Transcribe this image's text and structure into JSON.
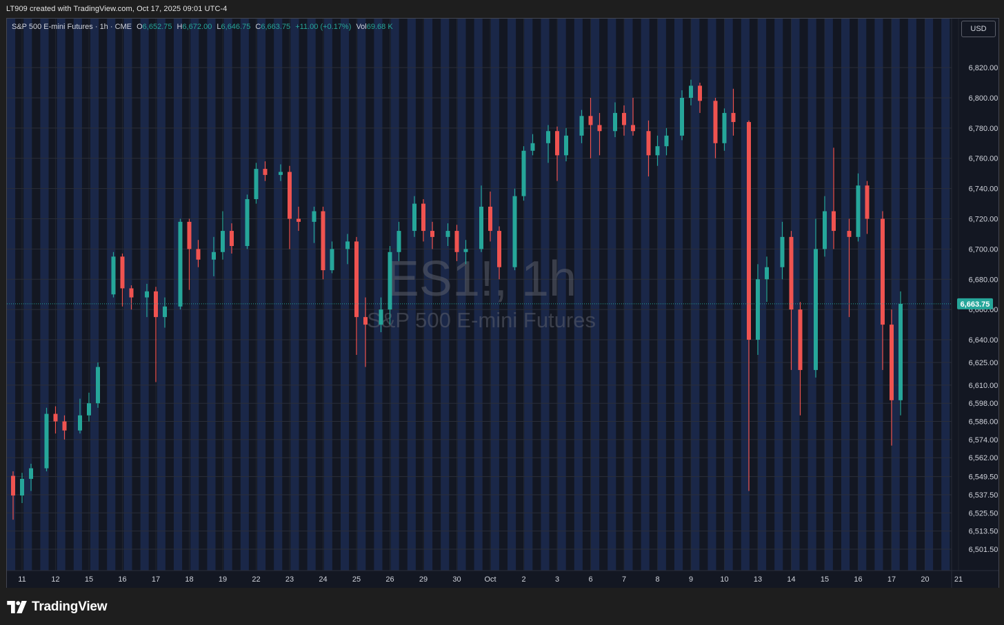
{
  "caption": "LT909 created with TradingView.com, Oct 17, 2025 09:01 UTC-4",
  "legend": {
    "symbol": "S&P 500 E-mini Futures · 1h · CME",
    "open_label": "O",
    "open": "6,652.75",
    "high_label": "H",
    "high": "6,672.00",
    "low_label": "L",
    "low": "6,646.75",
    "close_label": "C",
    "close": "6,663.75",
    "change": "+11.00 (+0.17%)",
    "vol_label": "Vol",
    "vol": "69.68 K"
  },
  "currency": "USD",
  "watermark": {
    "ticker": "ES1!, 1h",
    "name": "S&P 500 E-mini Futures"
  },
  "brand": "TradingView",
  "colors": {
    "up": "#26a69a",
    "down": "#ef5350",
    "price_tag": "#26a69a",
    "session_band": "#1a2748",
    "background": "#131722"
  },
  "chart_data": {
    "type": "candlestick",
    "interval": "1h",
    "ylim": [
      6491,
      6841
    ],
    "current_price": 6663.75,
    "current_price_label": "6,663.75",
    "y_ticks": [
      6820,
      6800,
      6780,
      6760,
      6740,
      6720,
      6700,
      6680,
      6660,
      6640,
      6625,
      6610,
      6598,
      6586,
      6574,
      6562,
      6549.5,
      6537.5,
      6525.5,
      6513.5,
      6501.5
    ],
    "y_tick_labels": [
      "6,820.00",
      "6,800.00",
      "6,780.00",
      "6,760.00",
      "6,740.00",
      "6,720.00",
      "6,700.00",
      "6,680.00",
      "6,660.00",
      "6,640.00",
      "6,625.00",
      "6,610.00",
      "6,598.00",
      "6,586.00",
      "6,574.00",
      "6,562.00",
      "6,549.50",
      "6,537.50",
      "6,525.50",
      "6,513.50",
      "6,501.50"
    ],
    "x_labels": [
      "11",
      "12",
      "15",
      "16",
      "17",
      "18",
      "19",
      "22",
      "23",
      "24",
      "25",
      "26",
      "29",
      "30",
      "Oct",
      "2",
      "3",
      "6",
      "7",
      "8",
      "9",
      "10",
      "13",
      "14",
      "15",
      "16",
      "17",
      "20",
      "21"
    ],
    "series": [
      {
        "x": "11",
        "open": 6550,
        "close": 6537,
        "high": 6553,
        "low": 6521
      },
      {
        "x": "11",
        "open": 6537,
        "close": 6548,
        "high": 6552,
        "low": 6532
      },
      {
        "x": "11",
        "open": 6548,
        "close": 6555,
        "high": 6558,
        "low": 6540
      },
      {
        "x": "12",
        "open": 6555,
        "close": 6591,
        "high": 6595,
        "low": 6553
      },
      {
        "x": "12",
        "open": 6591,
        "close": 6586,
        "high": 6596,
        "low": 6578
      },
      {
        "x": "12",
        "open": 6586,
        "close": 6580,
        "high": 6590,
        "low": 6574
      },
      {
        "x": "15",
        "open": 6580,
        "close": 6590,
        "high": 6601,
        "low": 6578
      },
      {
        "x": "15",
        "open": 6590,
        "close": 6598,
        "high": 6605,
        "low": 6586
      },
      {
        "x": "15",
        "open": 6598,
        "close": 6622,
        "high": 6625,
        "low": 6595
      },
      {
        "x": "16",
        "open": 6670,
        "close": 6695,
        "high": 6698,
        "low": 6668
      },
      {
        "x": "16",
        "open": 6695,
        "close": 6674,
        "high": 6697,
        "low": 6662
      },
      {
        "x": "16",
        "open": 6674,
        "close": 6668,
        "high": 6676,
        "low": 6660
      },
      {
        "x": "17",
        "open": 6668,
        "close": 6672,
        "high": 6677,
        "low": 6655
      },
      {
        "x": "17",
        "open": 6672,
        "close": 6655,
        "high": 6675,
        "low": 6612
      },
      {
        "x": "17",
        "open": 6655,
        "close": 6662,
        "high": 6668,
        "low": 6648
      },
      {
        "x": "18",
        "open": 6662,
        "close": 6718,
        "high": 6720,
        "low": 6660
      },
      {
        "x": "18",
        "open": 6718,
        "close": 6700,
        "high": 6720,
        "low": 6673
      },
      {
        "x": "18",
        "open": 6700,
        "close": 6693,
        "high": 6706,
        "low": 6688
      },
      {
        "x": "19",
        "open": 6693,
        "close": 6698,
        "high": 6708,
        "low": 6682
      },
      {
        "x": "19",
        "open": 6698,
        "close": 6712,
        "high": 6725,
        "low": 6693
      },
      {
        "x": "19",
        "open": 6712,
        "close": 6702,
        "high": 6717,
        "low": 6697
      },
      {
        "x": "22",
        "open": 6702,
        "close": 6733,
        "high": 6736,
        "low": 6700
      },
      {
        "x": "22",
        "open": 6733,
        "close": 6753,
        "high": 6757,
        "low": 6730
      },
      {
        "x": "22",
        "open": 6753,
        "close": 6749,
        "high": 6758,
        "low": 6745
      },
      {
        "x": "23",
        "open": 6749,
        "close": 6751,
        "high": 6756,
        "low": 6745
      },
      {
        "x": "23",
        "open": 6751,
        "close": 6720,
        "high": 6755,
        "low": 6700
      },
      {
        "x": "23",
        "open": 6720,
        "close": 6718,
        "high": 6728,
        "low": 6712
      },
      {
        "x": "24",
        "open": 6718,
        "close": 6725,
        "high": 6728,
        "low": 6704
      },
      {
        "x": "24",
        "open": 6725,
        "close": 6686,
        "high": 6728,
        "low": 6680
      },
      {
        "x": "24",
        "open": 6686,
        "close": 6700,
        "high": 6705,
        "low": 6684
      },
      {
        "x": "25",
        "open": 6700,
        "close": 6705,
        "high": 6710,
        "low": 6690
      },
      {
        "x": "25",
        "open": 6705,
        "close": 6655,
        "high": 6708,
        "low": 6630
      },
      {
        "x": "25",
        "open": 6655,
        "close": 6650,
        "high": 6668,
        "low": 6622
      },
      {
        "x": "26",
        "open": 6650,
        "close": 6660,
        "high": 6668,
        "low": 6645
      },
      {
        "x": "26",
        "open": 6660,
        "close": 6698,
        "high": 6702,
        "low": 6650
      },
      {
        "x": "26",
        "open": 6698,
        "close": 6712,
        "high": 6718,
        "low": 6692
      },
      {
        "x": "29",
        "open": 6712,
        "close": 6730,
        "high": 6735,
        "low": 6708
      },
      {
        "x": "29",
        "open": 6730,
        "close": 6712,
        "high": 6733,
        "low": 6705
      },
      {
        "x": "29",
        "open": 6712,
        "close": 6708,
        "high": 6718,
        "low": 6700
      },
      {
        "x": "30",
        "open": 6708,
        "close": 6712,
        "high": 6717,
        "low": 6702
      },
      {
        "x": "30",
        "open": 6712,
        "close": 6698,
        "high": 6716,
        "low": 6692
      },
      {
        "x": "30",
        "open": 6698,
        "close": 6700,
        "high": 6706,
        "low": 6690
      },
      {
        "x": "Oct",
        "open": 6700,
        "close": 6728,
        "high": 6742,
        "low": 6698
      },
      {
        "x": "Oct",
        "open": 6728,
        "close": 6712,
        "high": 6738,
        "low": 6705
      },
      {
        "x": "Oct",
        "open": 6712,
        "close": 6688,
        "high": 6715,
        "low": 6680
      },
      {
        "x": "2",
        "open": 6688,
        "close": 6735,
        "high": 6740,
        "low": 6686
      },
      {
        "x": "2",
        "open": 6735,
        "close": 6765,
        "high": 6768,
        "low": 6732
      },
      {
        "x": "2",
        "open": 6765,
        "close": 6770,
        "high": 6776,
        "low": 6762
      },
      {
        "x": "3",
        "open": 6770,
        "close": 6778,
        "high": 6782,
        "low": 6757
      },
      {
        "x": "3",
        "open": 6778,
        "close": 6762,
        "high": 6781,
        "low": 6745
      },
      {
        "x": "3",
        "open": 6762,
        "close": 6775,
        "high": 6780,
        "low": 6758
      },
      {
        "x": "6",
        "open": 6775,
        "close": 6788,
        "high": 6792,
        "low": 6770
      },
      {
        "x": "6",
        "open": 6788,
        "close": 6782,
        "high": 6800,
        "low": 6760
      },
      {
        "x": "6",
        "open": 6782,
        "close": 6778,
        "high": 6790,
        "low": 6762
      },
      {
        "x": "7",
        "open": 6778,
        "close": 6790,
        "high": 6797,
        "low": 6774
      },
      {
        "x": "7",
        "open": 6790,
        "close": 6782,
        "high": 6795,
        "low": 6775
      },
      {
        "x": "7",
        "open": 6782,
        "close": 6778,
        "high": 6800,
        "low": 6775
      },
      {
        "x": "8",
        "open": 6778,
        "close": 6762,
        "high": 6785,
        "low": 6748
      },
      {
        "x": "8",
        "open": 6762,
        "close": 6768,
        "high": 6775,
        "low": 6755
      },
      {
        "x": "8",
        "open": 6768,
        "close": 6775,
        "high": 6780,
        "low": 6762
      },
      {
        "x": "9",
        "open": 6775,
        "close": 6800,
        "high": 6805,
        "low": 6772
      },
      {
        "x": "9",
        "open": 6800,
        "close": 6808,
        "high": 6812,
        "low": 6795
      },
      {
        "x": "9",
        "open": 6808,
        "close": 6798,
        "high": 6810,
        "low": 6790
      },
      {
        "x": "10",
        "open": 6798,
        "close": 6770,
        "high": 6800,
        "low": 6760
      },
      {
        "x": "10",
        "open": 6770,
        "close": 6790,
        "high": 6793,
        "low": 6765
      },
      {
        "x": "10",
        "open": 6790,
        "close": 6784,
        "high": 6806,
        "low": 6775
      },
      {
        "x": "13",
        "open": 6784,
        "close": 6640,
        "high": 6785,
        "low": 6540
      },
      {
        "x": "13",
        "open": 6640,
        "close": 6680,
        "high": 6690,
        "low": 6630
      },
      {
        "x": "13",
        "open": 6680,
        "close": 6688,
        "high": 6695,
        "low": 6665
      },
      {
        "x": "14",
        "open": 6688,
        "close": 6708,
        "high": 6718,
        "low": 6680
      },
      {
        "x": "14",
        "open": 6708,
        "close": 6660,
        "high": 6712,
        "low": 6620
      },
      {
        "x": "14",
        "open": 6660,
        "close": 6620,
        "high": 6665,
        "low": 6590
      },
      {
        "x": "15",
        "open": 6620,
        "close": 6700,
        "high": 6720,
        "low": 6615
      },
      {
        "x": "15",
        "open": 6700,
        "close": 6725,
        "high": 6735,
        "low": 6695
      },
      {
        "x": "15",
        "open": 6725,
        "close": 6712,
        "high": 6767,
        "low": 6700
      },
      {
        "x": "16",
        "open": 6712,
        "close": 6708,
        "high": 6720,
        "low": 6655
      },
      {
        "x": "16",
        "open": 6708,
        "close": 6742,
        "high": 6750,
        "low": 6705
      },
      {
        "x": "16",
        "open": 6742,
        "close": 6720,
        "high": 6745,
        "low": 6710
      },
      {
        "x": "17",
        "open": 6720,
        "close": 6650,
        "high": 6725,
        "low": 6620
      },
      {
        "x": "17",
        "open": 6650,
        "close": 6600,
        "high": 6660,
        "low": 6570
      },
      {
        "x": "17",
        "open": 6600,
        "close": 6663.75,
        "high": 6672,
        "low": 6590
      }
    ]
  }
}
